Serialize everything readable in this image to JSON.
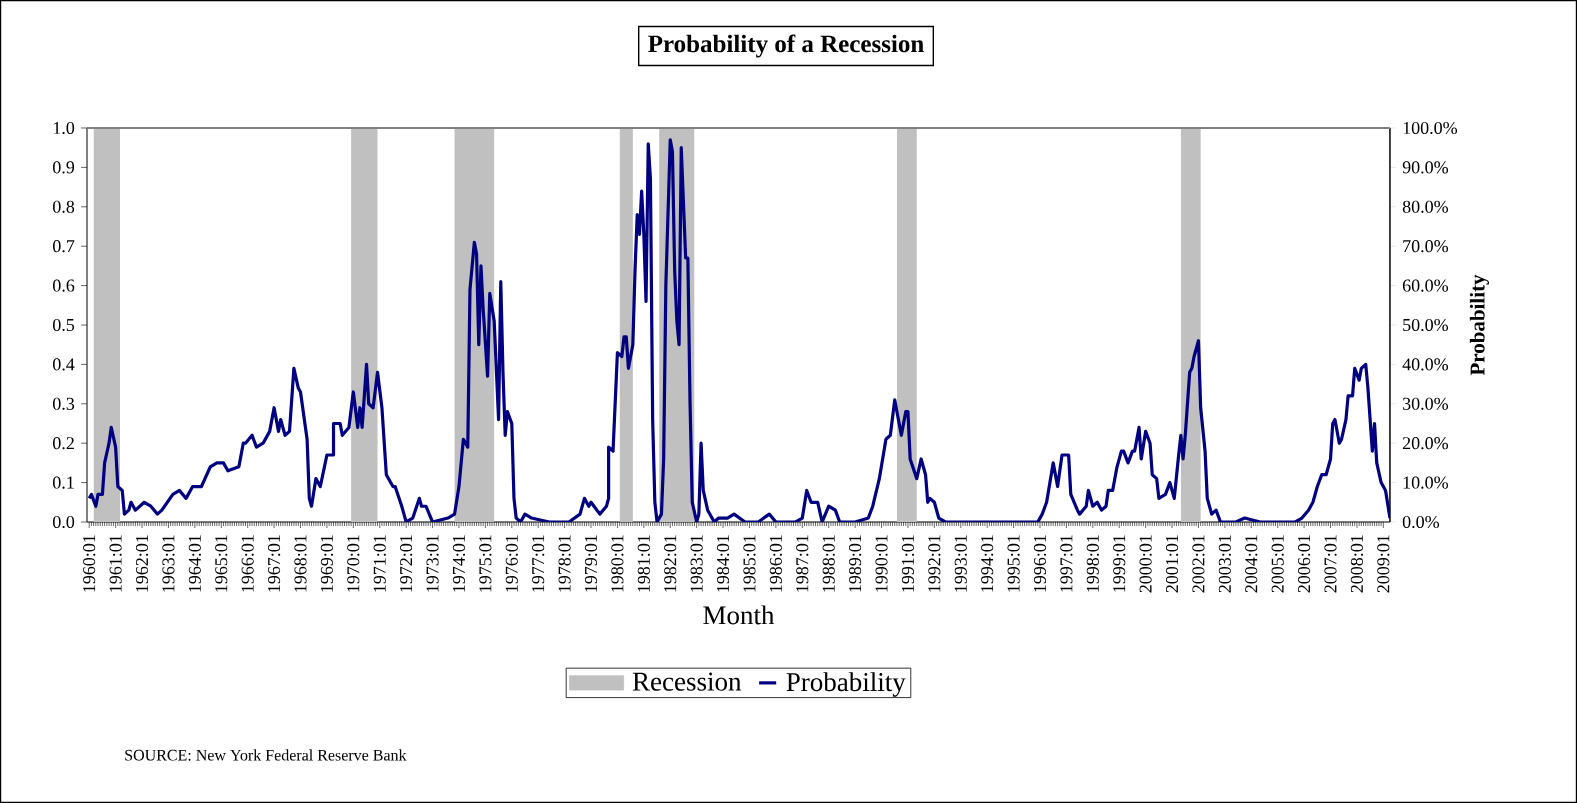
{
  "chart_data": {
    "type": "line",
    "title": "Probability of a Recession",
    "xlabel": "Month",
    "y2label": "Probability",
    "annotations": [
      "SOURCE:  New York Federal Reserve Bank"
    ],
    "legend": "bottom",
    "marker": "none",
    "line_style": "solid",
    "xlim": [
      "1959-12",
      "2009-04"
    ],
    "ylim": [
      0,
      1
    ],
    "y2lim": [
      0,
      100
    ],
    "xticks": [
      {
        "value": "1960-01",
        "label": "1960:01"
      },
      {
        "value": "1961-01",
        "label": "1961:01"
      },
      {
        "value": "1962-01",
        "label": "1962:01"
      },
      {
        "value": "1963-01",
        "label": "1963:01"
      },
      {
        "value": "1964-01",
        "label": "1964:01"
      },
      {
        "value": "1965-01",
        "label": "1965:01"
      },
      {
        "value": "1966-01",
        "label": "1966:01"
      },
      {
        "value": "1967-01",
        "label": "1967:01"
      },
      {
        "value": "1968-01",
        "label": "1968:01"
      },
      {
        "value": "1969-01",
        "label": "1969:01"
      },
      {
        "value": "1970-01",
        "label": "1970:01"
      },
      {
        "value": "1971-01",
        "label": "1971:01"
      },
      {
        "value": "1972-01",
        "label": "1972:01"
      },
      {
        "value": "1973-01",
        "label": "1973:01"
      },
      {
        "value": "1974-01",
        "label": "1974:01"
      },
      {
        "value": "1975-01",
        "label": "1975:01"
      },
      {
        "value": "1976-01",
        "label": "1976:01"
      },
      {
        "value": "1977-01",
        "label": "1977:01"
      },
      {
        "value": "1978-01",
        "label": "1978:01"
      },
      {
        "value": "1979-01",
        "label": "1979:01"
      },
      {
        "value": "1980-01",
        "label": "1980:01"
      },
      {
        "value": "1981-01",
        "label": "1981:01"
      },
      {
        "value": "1982-01",
        "label": "1982:01"
      },
      {
        "value": "1983-01",
        "label": "1983:01"
      },
      {
        "value": "1984-01",
        "label": "1984:01"
      },
      {
        "value": "1985-01",
        "label": "1985:01"
      },
      {
        "value": "1986-01",
        "label": "1986:01"
      },
      {
        "value": "1987-01",
        "label": "1987:01"
      },
      {
        "value": "1988-01",
        "label": "1988:01"
      },
      {
        "value": "1989-01",
        "label": "1989:01"
      },
      {
        "value": "1990-01",
        "label": "1990:01"
      },
      {
        "value": "1991-01",
        "label": "1991:01"
      },
      {
        "value": "1992-01",
        "label": "1992:01"
      },
      {
        "value": "1993-01",
        "label": "1993:01"
      },
      {
        "value": "1994-01",
        "label": "1994:01"
      },
      {
        "value": "1995-01",
        "label": "1995:01"
      },
      {
        "value": "1996-01",
        "label": "1996:01"
      },
      {
        "value": "1997-01",
        "label": "1997:01"
      },
      {
        "value": "1998-01",
        "label": "1998:01"
      },
      {
        "value": "1999-01",
        "label": "1999:01"
      },
      {
        "value": "2000-01",
        "label": "2000:01"
      },
      {
        "value": "2001-01",
        "label": "2001:01"
      },
      {
        "value": "2002-01",
        "label": "2002:01"
      },
      {
        "value": "2003-01",
        "label": "2003:01"
      },
      {
        "value": "2004-01",
        "label": "2004:01"
      },
      {
        "value": "2005-01",
        "label": "2005:01"
      },
      {
        "value": "2006-01",
        "label": "2006:01"
      },
      {
        "value": "2007-01",
        "label": "2007:01"
      },
      {
        "value": "2008-01",
        "label": "2008:01"
      },
      {
        "value": "2009-01",
        "label": "2009:01"
      }
    ],
    "yticks": [
      {
        "value": 0,
        "label": "0.0"
      },
      {
        "value": 0.1,
        "label": "0.1"
      },
      {
        "value": 0.2,
        "label": "0.2"
      },
      {
        "value": 0.3,
        "label": "0.3"
      },
      {
        "value": 0.4,
        "label": "0.4"
      },
      {
        "value": 0.5,
        "label": "0.5"
      },
      {
        "value": 0.6,
        "label": "0.6"
      },
      {
        "value": 0.7,
        "label": "0.7"
      },
      {
        "value": 0.8,
        "label": "0.8"
      },
      {
        "value": 0.9,
        "label": "0.9"
      },
      {
        "value": 1,
        "label": "1.0"
      }
    ],
    "y2ticks": [
      {
        "value": 0,
        "label": "0.0%"
      },
      {
        "value": 10,
        "label": "10.0%"
      },
      {
        "value": 20,
        "label": "20.0%"
      },
      {
        "value": 30,
        "label": "30.0%"
      },
      {
        "value": 40,
        "label": "40.0%"
      },
      {
        "value": 50,
        "label": "50.0%"
      },
      {
        "value": 60,
        "label": "60.0%"
      },
      {
        "value": 70,
        "label": "70.0%"
      },
      {
        "value": 80,
        "label": "80.0%"
      },
      {
        "value": 90,
        "label": "90.0%"
      },
      {
        "value": 100,
        "label": "100.0%"
      }
    ],
    "bands": [
      {
        "axis": "x",
        "from": "1960-03",
        "to": "1961-03",
        "label": "Recession",
        "color": "#c0c0c0"
      },
      {
        "axis": "x",
        "from": "1969-12",
        "to": "1970-12",
        "color": "#c0c0c0"
      },
      {
        "axis": "x",
        "from": "1973-11",
        "to": "1975-05",
        "color": "#c0c0c0"
      },
      {
        "axis": "x",
        "from": "1980-02",
        "to": "1980-08",
        "color": "#c0c0c0"
      },
      {
        "axis": "x",
        "from": "1981-08",
        "to": "1982-12",
        "color": "#c0c0c0"
      },
      {
        "axis": "x",
        "from": "1990-08",
        "to": "1991-05",
        "color": "#c0c0c0"
      },
      {
        "axis": "x",
        "from": "2001-05",
        "to": "2002-02",
        "color": "#c0c0c0"
      }
    ],
    "series": [
      {
        "name": "Probability",
        "color": "#000080",
        "x": [
          "1960-01",
          "1960-02",
          "1960-04",
          "1960-05",
          "1960-07",
          "1960-08",
          "1960-10",
          "1960-11",
          "1961-01",
          "1961-02",
          "1961-04",
          "1961-05",
          "1961-07",
          "1961-08",
          "1961-10",
          "1962-02",
          "1962-05",
          "1962-08",
          "1962-10",
          "1963-03",
          "1963-06",
          "1963-09",
          "1963-12",
          "1964-04",
          "1964-08",
          "1964-11",
          "1965-02",
          "1965-04",
          "1965-09",
          "1965-11",
          "1965-12",
          "1966-03",
          "1966-05",
          "1966-08",
          "1966-11",
          "1967-01",
          "1967-03",
          "1967-04",
          "1967-06",
          "1967-08",
          "1967-10",
          "1967-12",
          "1968-01",
          "1968-04",
          "1968-05",
          "1968-06",
          "1968-08",
          "1968-10",
          "1969-01",
          "1969-04",
          "1969-04",
          "1969-07",
          "1969-08",
          "1969-11",
          "1970-01",
          "1970-03",
          "1970-04",
          "1970-05",
          "1970-07",
          "1970-08",
          "1970-10",
          "1970-12",
          "1971-02",
          "1971-04",
          "1971-07",
          "1971-08",
          "1971-11",
          "1972-01",
          "1972-04",
          "1972-07",
          "1972-08",
          "1972-10",
          "1973-01",
          "1973-08",
          "1973-11",
          "1974-01",
          "1974-03",
          "1974-05",
          "1974-06",
          "1974-08",
          "1974-09",
          "1974-10",
          "1974-11",
          "1974-12",
          "1975-02",
          "1975-03",
          "1975-05",
          "1975-07",
          "1975-08",
          "1975-09",
          "1975-10",
          "1975-11",
          "1976-01",
          "1976-02",
          "1976-03",
          "1976-05",
          "1976-07",
          "1976-10",
          "1977-06",
          "1978-03",
          "1978-08",
          "1978-10",
          "1978-12",
          "1979-01",
          "1979-05",
          "1979-08",
          "1979-09",
          "1979-09",
          "1979-11",
          "1980-01",
          "1980-03",
          "1980-04",
          "1980-05",
          "1980-06",
          "1980-08",
          "1980-09",
          "1980-10",
          "1980-11",
          "1980-12",
          "1981-01",
          "1981-02",
          "1981-03",
          "1981-04",
          "1981-05",
          "1981-06",
          "1981-07",
          "1981-09",
          "1981-10",
          "1981-11",
          "1982-01",
          "1982-02",
          "1982-03",
          "1982-04",
          "1982-05",
          "1982-06",
          "1982-08",
          "1982-09",
          "1982-10",
          "1982-11",
          "1983-01",
          "1983-02",
          "1983-03",
          "1983-04",
          "1983-06",
          "1983-09",
          "1983-11",
          "1984-03",
          "1984-06",
          "1984-11",
          "1985-05",
          "1985-10",
          "1986-01",
          "1986-10",
          "1987-01",
          "1987-03",
          "1987-05",
          "1987-08",
          "1987-10",
          "1988-01",
          "1988-04",
          "1988-06",
          "1989-01",
          "1989-07",
          "1989-09",
          "1989-12",
          "1990-03",
          "1990-05",
          "1990-07",
          "1990-08",
          "1990-10",
          "1990-12",
          "1991-01",
          "1991-02",
          "1991-05",
          "1991-07",
          "1991-09",
          "1991-10",
          "1991-11",
          "1992-01",
          "1992-03",
          "1992-06",
          "1993-01",
          "1994-04",
          "1994-10",
          "1995-12",
          "1996-02",
          "1996-04",
          "1996-07",
          "1996-09",
          "1996-11",
          "1997-02",
          "1997-03",
          "1997-06",
          "1997-07",
          "1997-10",
          "1997-11",
          "1998-01",
          "1998-03",
          "1998-05",
          "1998-07",
          "1998-08",
          "1998-10",
          "1998-12",
          "1999-02",
          "1999-03",
          "1999-05",
          "1999-07",
          "1999-08",
          "1999-10",
          "1999-11",
          "2000-01",
          "2000-03",
          "2000-04",
          "2000-06",
          "2000-07",
          "2000-10",
          "2000-12",
          "2001-02",
          "2001-04",
          "2001-05",
          "2001-06",
          "2001-07",
          "2001-09",
          "2001-10",
          "2001-11",
          "2002-01",
          "2002-02",
          "2002-04",
          "2002-05",
          "2002-07",
          "2002-09",
          "2002-11",
          "2003-06",
          "2003-10",
          "2004-05",
          "2004-07",
          "2005-05",
          "2005-09",
          "2005-12",
          "2006-03",
          "2006-05",
          "2006-07",
          "2006-09",
          "2006-11",
          "2007-01",
          "2007-02",
          "2007-03",
          "2007-05",
          "2007-06",
          "2007-08",
          "2007-09",
          "2007-11",
          "2007-12",
          "2008-02",
          "2008-03",
          "2008-05",
          "2008-06",
          "2008-08",
          "2008-09",
          "2008-10",
          "2008-12",
          "2009-02",
          "2009-04"
        ],
        "values": [
          0.06,
          0.07,
          0.04,
          0.07,
          0.07,
          0.15,
          0.2,
          0.24,
          0.19,
          0.09,
          0.08,
          0.02,
          0.03,
          0.05,
          0.03,
          0.05,
          0.04,
          0.02,
          0.03,
          0.07,
          0.08,
          0.06,
          0.09,
          0.09,
          0.14,
          0.15,
          0.15,
          0.13,
          0.14,
          0.2,
          0.2,
          0.22,
          0.19,
          0.2,
          0.23,
          0.29,
          0.23,
          0.26,
          0.22,
          0.23,
          0.39,
          0.34,
          0.33,
          0.21,
          0.06,
          0.04,
          0.11,
          0.09,
          0.17,
          0.17,
          0.25,
          0.25,
          0.22,
          0.24,
          0.33,
          0.24,
          0.29,
          0.24,
          0.4,
          0.3,
          0.29,
          0.38,
          0.29,
          0.12,
          0.09,
          0.09,
          0.04,
          0.0,
          0.01,
          0.06,
          0.04,
          0.04,
          0.0,
          0.01,
          0.02,
          0.09,
          0.21,
          0.19,
          0.59,
          0.71,
          0.68,
          0.45,
          0.65,
          0.54,
          0.37,
          0.58,
          0.51,
          0.26,
          0.61,
          0.38,
          0.22,
          0.28,
          0.25,
          0.06,
          0.01,
          0.0,
          0.02,
          0.01,
          0.0,
          0.0,
          0.02,
          0.06,
          0.04,
          0.05,
          0.02,
          0.04,
          0.06,
          0.19,
          0.18,
          0.43,
          0.42,
          0.47,
          0.47,
          0.39,
          0.45,
          0.64,
          0.78,
          0.73,
          0.84,
          0.73,
          0.56,
          0.96,
          0.87,
          0.26,
          0.05,
          0.0,
          0.02,
          0.16,
          0.6,
          0.97,
          0.94,
          0.64,
          0.51,
          0.45,
          0.95,
          0.67,
          0.67,
          0.3,
          0.05,
          0.0,
          0.02,
          0.2,
          0.08,
          0.03,
          0.0,
          0.01,
          0.01,
          0.02,
          0.0,
          0.0,
          0.02,
          0.0,
          0.0,
          0.01,
          0.08,
          0.05,
          0.05,
          0.0,
          0.04,
          0.03,
          0.0,
          0.0,
          0.01,
          0.04,
          0.11,
          0.21,
          0.22,
          0.31,
          0.28,
          0.22,
          0.28,
          0.28,
          0.16,
          0.11,
          0.16,
          0.12,
          0.05,
          0.06,
          0.05,
          0.01,
          0.0,
          0.0,
          0.0,
          0.0,
          0.0,
          0.02,
          0.05,
          0.15,
          0.09,
          0.17,
          0.17,
          0.07,
          0.03,
          0.02,
          0.04,
          0.08,
          0.04,
          0.05,
          0.03,
          0.04,
          0.08,
          0.08,
          0.14,
          0.18,
          0.18,
          0.15,
          0.18,
          0.18,
          0.24,
          0.16,
          0.23,
          0.2,
          0.12,
          0.11,
          0.06,
          0.07,
          0.1,
          0.06,
          0.17,
          0.22,
          0.16,
          0.22,
          0.38,
          0.39,
          0.42,
          0.46,
          0.29,
          0.18,
          0.06,
          0.02,
          0.03,
          0.0,
          0.0,
          0.01,
          0.0,
          0.0,
          0.0,
          0.0,
          0.01,
          0.03,
          0.05,
          0.09,
          0.12,
          0.12,
          0.16,
          0.25,
          0.26,
          0.2,
          0.21,
          0.26,
          0.32,
          0.32,
          0.39,
          0.36,
          0.39,
          0.4,
          0.34,
          0.18,
          0.25,
          0.15,
          0.1,
          0.08,
          0.01
        ]
      }
    ]
  }
}
